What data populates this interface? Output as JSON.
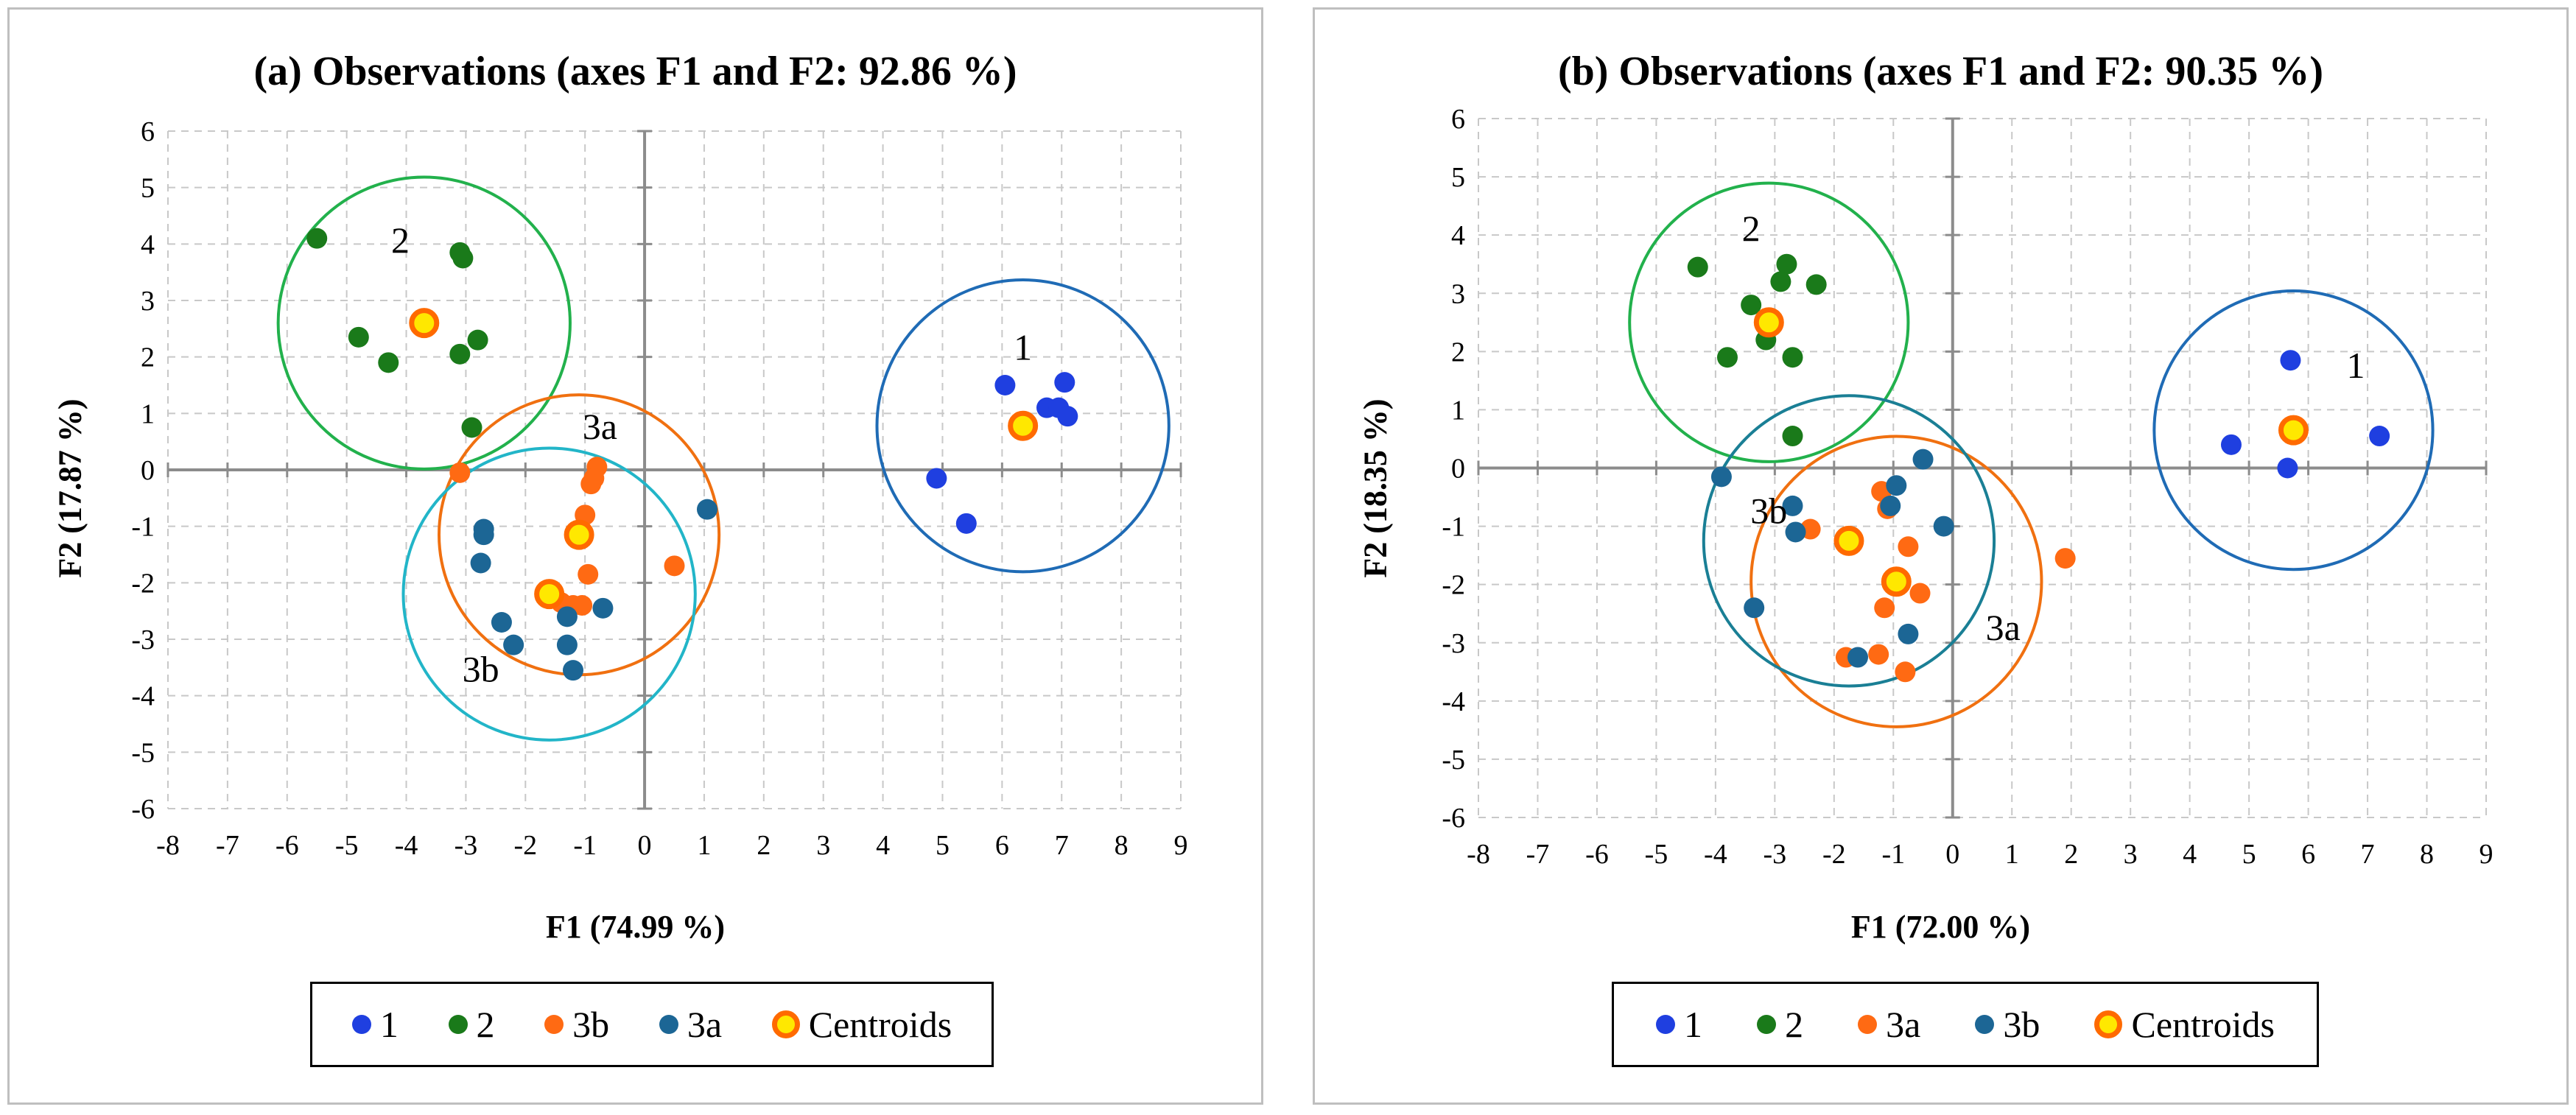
{
  "colors": {
    "c1": "#1f3fe0",
    "c2": "#1a7a1a",
    "c3orange": "#ff6a13",
    "c3teal": "#1c6695",
    "centroid_fill": "#ffe800",
    "centroid_edge": "#ff6a00"
  },
  "chart_data": [
    {
      "type": "scatter",
      "title": "(a) Observations (axes F1 and F2: 92.86 %)",
      "xlabel": "F1 (74.99 %)",
      "ylabel": "F2 (17.87 %)",
      "xlim": [
        -8,
        9
      ],
      "ylim": [
        -6,
        6
      ],
      "xticks": [
        "-8",
        "-7",
        "-6",
        "-5",
        "-4",
        "-3",
        "-2",
        "-1",
        "0",
        "1",
        "2",
        "3",
        "4",
        "5",
        "6",
        "7",
        "8",
        "9"
      ],
      "yticks": [
        "-6",
        "-5",
        "-4",
        "-3",
        "-2",
        "-1",
        "0",
        "1",
        "2",
        "3",
        "4",
        "5",
        "6"
      ],
      "grid": true,
      "legend_position": "bottom",
      "legend": [
        {
          "label": "1",
          "color": "#1f3fe0"
        },
        {
          "label": "2",
          "color": "#1a7a1a"
        },
        {
          "label": "3b",
          "color": "#ff6a13"
        },
        {
          "label": "3a",
          "color": "#1c6695"
        },
        {
          "label": "Centroids",
          "color": "#ffe800",
          "edge": "#ff6a00"
        }
      ],
      "series": [
        {
          "name": "1",
          "color": "#1f3fe0",
          "points": [
            [
              6.05,
              1.5
            ],
            [
              6.75,
              1.1
            ],
            [
              6.95,
              1.1
            ],
            [
              7.05,
              1.55
            ],
            [
              7.1,
              0.95
            ],
            [
              4.9,
              -0.15
            ],
            [
              5.4,
              -0.95
            ]
          ]
        },
        {
          "name": "2",
          "color": "#1a7a1a",
          "points": [
            [
              -5.5,
              4.1
            ],
            [
              -3.1,
              3.85
            ],
            [
              -3.05,
              3.75
            ],
            [
              -4.8,
              2.35
            ],
            [
              -4.3,
              1.9
            ],
            [
              -2.8,
              2.3
            ],
            [
              -3.1,
              2.05
            ],
            [
              -2.9,
              0.75
            ]
          ]
        },
        {
          "name": "3b",
          "color": "#ff6a13",
          "points": [
            [
              -3.1,
              -0.05
            ],
            [
              -0.8,
              0.05
            ],
            [
              -0.85,
              -0.15
            ],
            [
              -0.9,
              -0.25
            ],
            [
              -1.0,
              -0.8
            ],
            [
              -0.95,
              -1.85
            ],
            [
              -1.4,
              -2.35
            ],
            [
              -1.2,
              -2.4
            ],
            [
              -1.05,
              -2.4
            ],
            [
              0.5,
              -1.7
            ]
          ]
        },
        {
          "name": "3a",
          "color": "#1c6695",
          "points": [
            [
              -2.7,
              -1.05
            ],
            [
              -2.7,
              -1.15
            ],
            [
              -2.75,
              -1.65
            ],
            [
              -2.4,
              -2.7
            ],
            [
              -2.2,
              -3.1
            ],
            [
              -1.3,
              -2.6
            ],
            [
              -1.3,
              -3.1
            ],
            [
              -1.2,
              -3.55
            ],
            [
              -0.7,
              -2.45
            ],
            [
              1.05,
              -0.7
            ]
          ]
        }
      ],
      "centroids": [
        [
          -3.7,
          2.6
        ],
        [
          6.35,
          0.78
        ],
        [
          -1.1,
          -1.15
        ],
        [
          -1.6,
          -2.2
        ]
      ],
      "clusters": [
        {
          "label": "1",
          "cx": 6.35,
          "cy": 0.78,
          "r": 2.45,
          "color": "#1f6bb5",
          "label_x": 6.35,
          "label_y": 1.95
        },
        {
          "label": "2",
          "cx": -3.7,
          "cy": 2.6,
          "r": 2.45,
          "color": "#22b14c",
          "label_x": -4.1,
          "label_y": 3.85
        },
        {
          "label": "3a",
          "cx": -1.1,
          "cy": -1.15,
          "r": 2.35,
          "color": "#f07010",
          "label_x": -0.75,
          "label_y": 0.55
        },
        {
          "label": "3b",
          "cx": -1.6,
          "cy": -2.2,
          "r": 2.45,
          "color": "#22b5c8",
          "label_x": -2.75,
          "label_y": -3.75
        }
      ]
    },
    {
      "type": "scatter",
      "title": "(b) Observations (axes F1 and F2: 90.35 %)",
      "xlabel": "F1 (72.00 %)",
      "ylabel": "F2 (18.35 %)",
      "xlim": [
        -8,
        9
      ],
      "ylim": [
        -6,
        6
      ],
      "xticks": [
        "-8",
        "-7",
        "-6",
        "-5",
        "-4",
        "-3",
        "-2",
        "-1",
        "0",
        "1",
        "2",
        "3",
        "4",
        "5",
        "6",
        "7",
        "8",
        "9"
      ],
      "yticks": [
        "-6",
        "-5",
        "-4",
        "-3",
        "-2",
        "-1",
        "0",
        "1",
        "2",
        "3",
        "4",
        "5",
        "6"
      ],
      "grid": true,
      "legend_position": "bottom",
      "legend": [
        {
          "label": "1",
          "color": "#1f3fe0"
        },
        {
          "label": "2",
          "color": "#1a7a1a"
        },
        {
          "label": "3a",
          "color": "#ff6a13"
        },
        {
          "label": "3b",
          "color": "#1c6695"
        },
        {
          "label": "Centroids",
          "color": "#ffe800",
          "edge": "#ff6a00"
        }
      ],
      "series": [
        {
          "name": "1",
          "color": "#1f3fe0",
          "points": [
            [
              5.7,
              1.85
            ],
            [
              7.2,
              0.55
            ],
            [
              4.7,
              0.4
            ],
            [
              5.65,
              0.0
            ]
          ]
        },
        {
          "name": "2",
          "color": "#1a7a1a",
          "points": [
            [
              -4.3,
              3.45
            ],
            [
              -2.8,
              3.5
            ],
            [
              -3.4,
              2.8
            ],
            [
              -2.9,
              3.2
            ],
            [
              -2.3,
              3.15
            ],
            [
              -3.15,
              2.2
            ],
            [
              -3.8,
              1.9
            ],
            [
              -2.7,
              1.9
            ],
            [
              -2.7,
              0.55
            ]
          ]
        },
        {
          "name": "3a",
          "color": "#ff6a13",
          "points": [
            [
              -1.2,
              -0.4
            ],
            [
              -2.4,
              -1.05
            ],
            [
              -1.1,
              -0.7
            ],
            [
              -0.75,
              -1.35
            ],
            [
              -0.55,
              -2.15
            ],
            [
              -1.15,
              -2.4
            ],
            [
              -1.25,
              -3.2
            ],
            [
              -1.8,
              -3.25
            ],
            [
              -0.8,
              -3.5
            ],
            [
              1.9,
              -1.55
            ]
          ]
        },
        {
          "name": "3b",
          "color": "#1c6695",
          "points": [
            [
              -3.9,
              -0.15
            ],
            [
              -2.7,
              -0.65
            ],
            [
              -2.65,
              -1.1
            ],
            [
              -1.05,
              -0.65
            ],
            [
              -0.95,
              -0.3
            ],
            [
              -0.5,
              0.15
            ],
            [
              -0.15,
              -1.0
            ],
            [
              -3.35,
              -2.4
            ],
            [
              -1.6,
              -3.25
            ],
            [
              -0.75,
              -2.85
            ]
          ]
        }
      ],
      "centroids": [
        [
          -3.1,
          2.5
        ],
        [
          5.75,
          0.65
        ],
        [
          -1.75,
          -1.25
        ],
        [
          -0.95,
          -1.95
        ]
      ],
      "clusters": [
        {
          "label": "1",
          "cx": 5.75,
          "cy": 0.65,
          "r": 2.35,
          "color": "#1f6bb5",
          "label_x": 6.8,
          "label_y": 1.55
        },
        {
          "label": "2",
          "cx": -3.1,
          "cy": 2.5,
          "r": 2.35,
          "color": "#22b14c",
          "label_x": -3.4,
          "label_y": 3.9
        },
        {
          "label": "3a",
          "cx": -0.95,
          "cy": -1.95,
          "r": 2.45,
          "color": "#f07010",
          "label_x": 0.85,
          "label_y": -2.95
        },
        {
          "label": "3b",
          "cx": -1.75,
          "cy": -1.25,
          "r": 2.45,
          "color": "#1a7f95",
          "label_x": -3.1,
          "label_y": -0.95
        }
      ]
    }
  ]
}
